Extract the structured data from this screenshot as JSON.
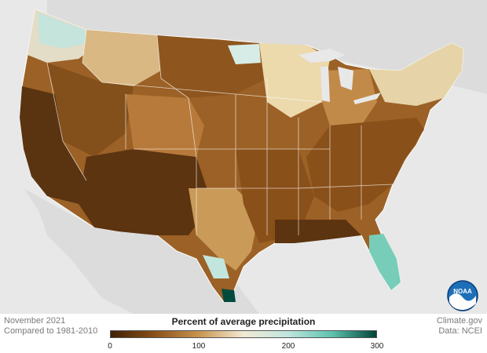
{
  "map": {
    "subject": "Percent of average precipitation",
    "region": "Contiguous United States",
    "colors": {
      "very_dry": "#4a2a08",
      "dry": "#8a5019",
      "moderately_dry": "#b77a3a",
      "near_average": "#f2ead6",
      "wet": "#c6e8e2",
      "very_wet": "#6ccab8",
      "extreme_wet": "#014c3e",
      "land_background": "#d9d9d9",
      "water": "#e8e8e8"
    }
  },
  "footer": {
    "period": "November 2021",
    "baseline": "Compared to 1981-2010",
    "source_site": "Climate.gov",
    "source_data": "Data: NCEI"
  },
  "legend": {
    "title": "Percent of average precipitation",
    "min": 0,
    "max": 300,
    "ticks": [
      "0",
      "100",
      "200",
      "300"
    ],
    "gradient": [
      "#3e2105",
      "#8a5019",
      "#c9954f",
      "#f3ead3",
      "#bfe6df",
      "#5ec2ad",
      "#01453a"
    ]
  },
  "logo": {
    "text": "NOAA"
  }
}
